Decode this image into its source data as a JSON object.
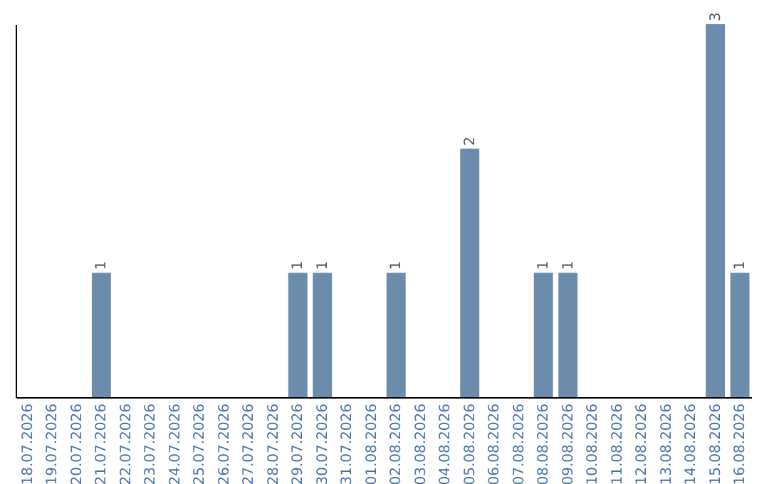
{
  "chart_data": {
    "type": "bar",
    "categories": [
      "18.07.2026",
      "19.07.2026",
      "20.07.2026",
      "21.07.2026",
      "22.07.2026",
      "23.07.2026",
      "24.07.2026",
      "25.07.2026",
      "26.07.2026",
      "27.07.2026",
      "28.07.2026",
      "29.07.2026",
      "30.07.2026",
      "31.07.2026",
      "01.08.2026",
      "02.08.2026",
      "03.08.2026",
      "04.08.2026",
      "05.08.2026",
      "06.08.2026",
      "07.08.2026",
      "08.08.2026",
      "09.08.2026",
      "10.08.2026",
      "11.08.2026",
      "12.08.2026",
      "13.08.2026",
      "14.08.2026",
      "15.08.2026",
      "16.08.2026"
    ],
    "values": [
      0,
      0,
      0,
      1,
      0,
      0,
      0,
      0,
      0,
      0,
      0,
      1,
      1,
      0,
      0,
      1,
      0,
      0,
      2,
      0,
      0,
      1,
      1,
      0,
      0,
      0,
      0,
      0,
      3,
      1
    ],
    "value_labels": [
      null,
      null,
      null,
      "1",
      null,
      null,
      null,
      null,
      null,
      null,
      null,
      "1",
      "1",
      null,
      null,
      "1",
      null,
      null,
      "2",
      null,
      null,
      "1",
      "1",
      null,
      null,
      null,
      null,
      null,
      "3",
      "1"
    ],
    "color": "#6b8cab",
    "tick_labels": "x"
  }
}
